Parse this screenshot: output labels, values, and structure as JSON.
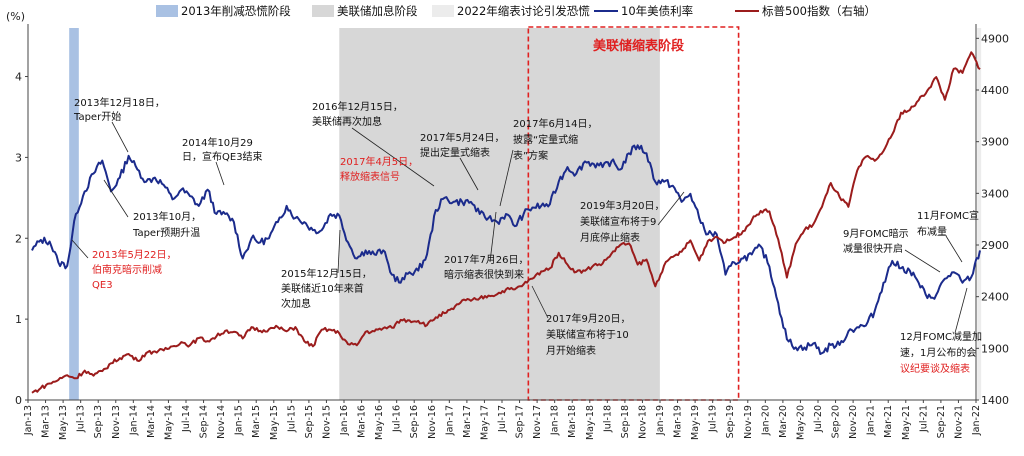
{
  "chart_data": {
    "type": "line",
    "unit_left": "(%)",
    "legend": [
      {
        "label": "2013年削减恐慌阶段",
        "kind": "band",
        "color": "#a9c1e3"
      },
      {
        "label": "美联储加息阶段",
        "kind": "band",
        "color": "#d7d7d7"
      },
      {
        "label": "2022年缩表讨论引发恐慌",
        "kind": "band",
        "color": "#ececec"
      },
      {
        "label": "10年美债利率",
        "kind": "line",
        "color": "#1b2b8c"
      },
      {
        "label": "标普500指数（右轴）",
        "kind": "line",
        "color": "#9b1c1c"
      }
    ],
    "highlight_label": "美联储缩表阶段",
    "y_left": {
      "min": 0,
      "max": 4.6,
      "ticks": [
        0,
        1,
        2,
        3,
        4
      ]
    },
    "y_right": {
      "min": 1400,
      "max": 5000,
      "ticks": [
        1400,
        1900,
        2400,
        2900,
        3400,
        3900,
        4400,
        4900
      ]
    },
    "x_ticks": [
      "Jan-13",
      "Mar-13",
      "May-13",
      "Jul-13",
      "Sep-13",
      "Nov-13",
      "Jan-14",
      "Mar-14",
      "May-14",
      "Jul-14",
      "Sep-14",
      "Nov-14",
      "Jan-15",
      "Mar-15",
      "May-15",
      "Jul-15",
      "Sep-15",
      "Nov-15",
      "Jan-16",
      "Mar-16",
      "May-16",
      "Jul-16",
      "Sep-16",
      "Nov-16",
      "Jan-17",
      "Mar-17",
      "May-17",
      "Jul-17",
      "Sep-17",
      "Nov-17",
      "Jan-18",
      "Mar-18",
      "May-18",
      "Jul-18",
      "Sep-18",
      "Nov-18",
      "Jan-19",
      "Mar-19",
      "May-19",
      "Jul-19",
      "Sep-19",
      "Nov-19",
      "Jan-20",
      "Mar-20",
      "May-20",
      "Jul-20",
      "Sep-20",
      "Nov-20",
      "Jan-21",
      "Mar-21",
      "May-21",
      "Jul-21",
      "Sep-21",
      "Nov-21",
      "Jan-22"
    ],
    "x_start": "2013-01",
    "x_end": "2022-01",
    "bands": [
      {
        "name": "taper",
        "start": "2013-05-22",
        "end": "2013-06-25"
      },
      {
        "name": "hike",
        "start": "2015-12-15",
        "end": "2018-12-31"
      },
      {
        "name": "panic2022",
        "start": "2022-01-05",
        "end": "2022-01-31"
      }
    ],
    "qt_box": {
      "start": "2017-10-01",
      "end": "2019-09-30"
    },
    "series": [
      {
        "name": "10年美债利率",
        "axis": "left",
        "color": "#1b2b8c",
        "points": [
          [
            "2013-01",
            1.85
          ],
          [
            "2013-02",
            1.98
          ],
          [
            "2013-03",
            1.96
          ],
          [
            "2013-04",
            1.7
          ],
          [
            "2013-05",
            1.66
          ],
          [
            "2013-06",
            2.3
          ],
          [
            "2013-07",
            2.58
          ],
          [
            "2013-08",
            2.8
          ],
          [
            "2013-09",
            2.96
          ],
          [
            "2013-10",
            2.58
          ],
          [
            "2013-11",
            2.75
          ],
          [
            "2013-12",
            3.02
          ],
          [
            "2014-01",
            2.85
          ],
          [
            "2014-02",
            2.7
          ],
          [
            "2014-03",
            2.75
          ],
          [
            "2014-04",
            2.66
          ],
          [
            "2014-05",
            2.48
          ],
          [
            "2014-06",
            2.6
          ],
          [
            "2014-07",
            2.52
          ],
          [
            "2014-08",
            2.4
          ],
          [
            "2014-09",
            2.6
          ],
          [
            "2014-10",
            2.3
          ],
          [
            "2014-11",
            2.3
          ],
          [
            "2014-12",
            2.2
          ],
          [
            "2015-01",
            1.75
          ],
          [
            "2015-02",
            2.0
          ],
          [
            "2015-03",
            1.95
          ],
          [
            "2015-04",
            2.0
          ],
          [
            "2015-05",
            2.2
          ],
          [
            "2015-06",
            2.4
          ],
          [
            "2015-07",
            2.25
          ],
          [
            "2015-08",
            2.2
          ],
          [
            "2015-09",
            2.1
          ],
          [
            "2015-10",
            2.1
          ],
          [
            "2015-11",
            2.3
          ],
          [
            "2015-12",
            2.28
          ],
          [
            "2016-01",
            1.95
          ],
          [
            "2016-02",
            1.75
          ],
          [
            "2016-03",
            1.85
          ],
          [
            "2016-04",
            1.8
          ],
          [
            "2016-05",
            1.85
          ],
          [
            "2016-06",
            1.55
          ],
          [
            "2016-07",
            1.45
          ],
          [
            "2016-08",
            1.58
          ],
          [
            "2016-09",
            1.6
          ],
          [
            "2016-10",
            1.8
          ],
          [
            "2016-11",
            2.35
          ],
          [
            "2016-12",
            2.5
          ],
          [
            "2017-01",
            2.45
          ],
          [
            "2017-02",
            2.45
          ],
          [
            "2017-03",
            2.45
          ],
          [
            "2017-04",
            2.3
          ],
          [
            "2017-05",
            2.25
          ],
          [
            "2017-06",
            2.2
          ],
          [
            "2017-07",
            2.3
          ],
          [
            "2017-08",
            2.15
          ],
          [
            "2017-09",
            2.3
          ],
          [
            "2017-10",
            2.38
          ],
          [
            "2017-11",
            2.4
          ],
          [
            "2017-12",
            2.42
          ],
          [
            "2018-01",
            2.7
          ],
          [
            "2018-02",
            2.88
          ],
          [
            "2018-03",
            2.8
          ],
          [
            "2018-04",
            2.95
          ],
          [
            "2018-05",
            2.92
          ],
          [
            "2018-06",
            2.88
          ],
          [
            "2018-07",
            2.95
          ],
          [
            "2018-08",
            2.85
          ],
          [
            "2018-09",
            3.05
          ],
          [
            "2018-10",
            3.15
          ],
          [
            "2018-11",
            3.05
          ],
          [
            "2018-12",
            2.7
          ],
          [
            "2019-01",
            2.7
          ],
          [
            "2019-02",
            2.65
          ],
          [
            "2019-03",
            2.45
          ],
          [
            "2019-04",
            2.55
          ],
          [
            "2019-05",
            2.25
          ],
          [
            "2019-06",
            2.05
          ],
          [
            "2019-07",
            2.05
          ],
          [
            "2019-08",
            1.55
          ],
          [
            "2019-09",
            1.7
          ],
          [
            "2019-10",
            1.75
          ],
          [
            "2019-11",
            1.8
          ],
          [
            "2019-12",
            1.9
          ],
          [
            "2020-01",
            1.65
          ],
          [
            "2020-02",
            1.2
          ],
          [
            "2020-03",
            0.75
          ],
          [
            "2020-04",
            0.65
          ],
          [
            "2020-05",
            0.65
          ],
          [
            "2020-06",
            0.7
          ],
          [
            "2020-07",
            0.58
          ],
          [
            "2020-08",
            0.68
          ],
          [
            "2020-09",
            0.68
          ],
          [
            "2020-10",
            0.85
          ],
          [
            "2020-11",
            0.9
          ],
          [
            "2020-12",
            0.92
          ],
          [
            "2021-01",
            1.1
          ],
          [
            "2021-02",
            1.45
          ],
          [
            "2021-03",
            1.72
          ],
          [
            "2021-04",
            1.63
          ],
          [
            "2021-05",
            1.6
          ],
          [
            "2021-06",
            1.45
          ],
          [
            "2021-07",
            1.26
          ],
          [
            "2021-08",
            1.3
          ],
          [
            "2021-09",
            1.5
          ],
          [
            "2021-10",
            1.58
          ],
          [
            "2021-11",
            1.45
          ],
          [
            "2021-12",
            1.52
          ],
          [
            "2022-01",
            1.85
          ]
        ]
      },
      {
        "name": "标普500指数（右轴）",
        "axis": "right",
        "color": "#9b1c1c",
        "points": [
          [
            "2013-01",
            1470
          ],
          [
            "2013-02",
            1515
          ],
          [
            "2013-03",
            1560
          ],
          [
            "2013-04",
            1595
          ],
          [
            "2013-05",
            1640
          ],
          [
            "2013-06",
            1610
          ],
          [
            "2013-07",
            1685
          ],
          [
            "2013-08",
            1635
          ],
          [
            "2013-09",
            1680
          ],
          [
            "2013-10",
            1755
          ],
          [
            "2013-11",
            1805
          ],
          [
            "2013-12",
            1845
          ],
          [
            "2014-01",
            1780
          ],
          [
            "2014-02",
            1855
          ],
          [
            "2014-03",
            1870
          ],
          [
            "2014-04",
            1880
          ],
          [
            "2014-05",
            1920
          ],
          [
            "2014-06",
            1960
          ],
          [
            "2014-07",
            1930
          ],
          [
            "2014-08",
            2000
          ],
          [
            "2014-09",
            1970
          ],
          [
            "2014-10",
            2015
          ],
          [
            "2014-11",
            2070
          ],
          [
            "2014-12",
            2060
          ],
          [
            "2015-01",
            1995
          ],
          [
            "2015-02",
            2105
          ],
          [
            "2015-03",
            2070
          ],
          [
            "2015-04",
            2085
          ],
          [
            "2015-05",
            2105
          ],
          [
            "2015-06",
            2065
          ],
          [
            "2015-07",
            2105
          ],
          [
            "2015-08",
            1970
          ],
          [
            "2015-09",
            1920
          ],
          [
            "2015-10",
            2080
          ],
          [
            "2015-11",
            2080
          ],
          [
            "2015-12",
            2045
          ],
          [
            "2016-01",
            1940
          ],
          [
            "2016-02",
            1930
          ],
          [
            "2016-03",
            2060
          ],
          [
            "2016-04",
            2065
          ],
          [
            "2016-05",
            2095
          ],
          [
            "2016-06",
            2100
          ],
          [
            "2016-07",
            2175
          ],
          [
            "2016-08",
            2170
          ],
          [
            "2016-09",
            2165
          ],
          [
            "2016-10",
            2125
          ],
          [
            "2016-11",
            2200
          ],
          [
            "2016-12",
            2240
          ],
          [
            "2017-01",
            2280
          ],
          [
            "2017-02",
            2365
          ],
          [
            "2017-03",
            2360
          ],
          [
            "2017-04",
            2385
          ],
          [
            "2017-05",
            2410
          ],
          [
            "2017-06",
            2425
          ],
          [
            "2017-07",
            2470
          ],
          [
            "2017-08",
            2470
          ],
          [
            "2017-09",
            2520
          ],
          [
            "2017-10",
            2575
          ],
          [
            "2017-11",
            2645
          ],
          [
            "2017-12",
            2675
          ],
          [
            "2018-01",
            2825
          ],
          [
            "2018-02",
            2710
          ],
          [
            "2018-03",
            2640
          ],
          [
            "2018-04",
            2650
          ],
          [
            "2018-05",
            2705
          ],
          [
            "2018-06",
            2720
          ],
          [
            "2018-07",
            2815
          ],
          [
            "2018-08",
            2900
          ],
          [
            "2018-09",
            2915
          ],
          [
            "2018-10",
            2710
          ],
          [
            "2018-11",
            2760
          ],
          [
            "2018-12",
            2500
          ],
          [
            "2019-01",
            2700
          ],
          [
            "2019-02",
            2785
          ],
          [
            "2019-03",
            2835
          ],
          [
            "2019-04",
            2945
          ],
          [
            "2019-05",
            2750
          ],
          [
            "2019-06",
            2940
          ],
          [
            "2019-07",
            2980
          ],
          [
            "2019-08",
            2925
          ],
          [
            "2019-09",
            2975
          ],
          [
            "2019-10",
            3035
          ],
          [
            "2019-11",
            3140
          ],
          [
            "2019-12",
            3230
          ],
          [
            "2020-01",
            3225
          ],
          [
            "2020-02",
            2955
          ],
          [
            "2020-03",
            2585
          ],
          [
            "2020-04",
            2910
          ],
          [
            "2020-05",
            3045
          ],
          [
            "2020-06",
            3100
          ],
          [
            "2020-07",
            3270
          ],
          [
            "2020-08",
            3500
          ],
          [
            "2020-09",
            3365
          ],
          [
            "2020-10",
            3270
          ],
          [
            "2020-11",
            3620
          ],
          [
            "2020-12",
            3755
          ],
          [
            "2021-01",
            3715
          ],
          [
            "2021-02",
            3810
          ],
          [
            "2021-03",
            3970
          ],
          [
            "2021-04",
            4180
          ],
          [
            "2021-05",
            4205
          ],
          [
            "2021-06",
            4300
          ],
          [
            "2021-07",
            4395
          ],
          [
            "2021-08",
            4525
          ],
          [
            "2021-09",
            4305
          ],
          [
            "2021-10",
            4605
          ],
          [
            "2021-11",
            4565
          ],
          [
            "2021-12",
            4765
          ],
          [
            "2022-01",
            4600
          ]
        ]
      }
    ],
    "annotations": [
      {
        "text": "2013年12月18日，",
        "color": "black"
      },
      {
        "text": "Taper开始",
        "color": "black"
      },
      {
        "text": "2014年10月29",
        "color": "black"
      },
      {
        "text": "日，宣布QE3结束",
        "color": "black"
      },
      {
        "text": "2013年10月，",
        "color": "black"
      },
      {
        "text": "Taper预期升温",
        "color": "black"
      },
      {
        "text": "2013年5月22日，",
        "color": "red"
      },
      {
        "text": "伯南克暗示削减",
        "color": "red"
      },
      {
        "text": "QE3",
        "color": "red"
      },
      {
        "text": "2016年12月15日，",
        "color": "black"
      },
      {
        "text": "美联储再次加息",
        "color": "black"
      },
      {
        "text": "2017年5月24日，",
        "color": "black"
      },
      {
        "text": "提出定量式缩表",
        "color": "black"
      },
      {
        "text": "2017年6月14日，",
        "color": "black"
      },
      {
        "text": "披露“定量式缩",
        "color": "black"
      },
      {
        "text": "表”方案",
        "color": "black"
      },
      {
        "text": "2017年4月5日，",
        "color": "red"
      },
      {
        "text": "释放缩表信号",
        "color": "red"
      },
      {
        "text": "2015年12月15日，",
        "color": "black"
      },
      {
        "text": "美联储近10年来首",
        "color": "black"
      },
      {
        "text": "次加息",
        "color": "black"
      },
      {
        "text": "2017年7月26日，",
        "color": "black"
      },
      {
        "text": "暗示缩表很快到来",
        "color": "black"
      },
      {
        "text": "2019年3月20日，",
        "color": "black"
      },
      {
        "text": "美联储宣布将于9",
        "color": "black"
      },
      {
        "text": "月底停止缩表",
        "color": "black"
      },
      {
        "text": "2017年9月20日，",
        "color": "black"
      },
      {
        "text": "美联储宣布将于10",
        "color": "black"
      },
      {
        "text": "月开始缩表",
        "color": "black"
      },
      {
        "text": "9月FOMC暗示",
        "color": "black"
      },
      {
        "text": "减量很快开启",
        "color": "black"
      },
      {
        "text": "11月FOMC宣",
        "color": "black"
      },
      {
        "text": "布减量",
        "color": "black"
      },
      {
        "text": "12月FOMC减量加",
        "color": "black"
      },
      {
        "text": "速，1月公布的会",
        "color": "mixed"
      },
      {
        "text": "议纪要谈及缩表",
        "color": "red"
      }
    ]
  }
}
